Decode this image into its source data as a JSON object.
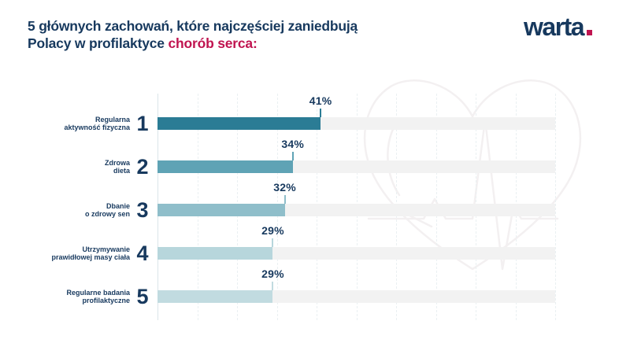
{
  "header": {
    "title_line1": "5 głównych zachowań, które najczęściej zaniedbują",
    "title_line2_prefix": "Polacy w profilaktyce ",
    "title_line2_highlight": "chorób serca:",
    "logo_text": "warta"
  },
  "colors": {
    "navy": "#17395e",
    "red": "#c01450",
    "track": "#f2f2f2",
    "axis": "#dbe5e9",
    "grid": "#eaf0f2",
    "watermark": "#f3f0f1"
  },
  "chart_data": {
    "type": "bar",
    "orientation": "horizontal",
    "title": "5 głównych zachowań, które najczęściej zaniedbują Polacy w profilaktyce chorób serca:",
    "categories": [
      "Regularna aktywność fizyczna",
      "Zdrowa dieta",
      "Dbanie o zdrowy sen",
      "Utrzymywanie prawidłowej masy ciała",
      "Regularne badania profilaktyczne"
    ],
    "category_label_lines": [
      [
        "Regularna",
        "aktywność fizyczna"
      ],
      [
        "Zdrowa",
        "dieta"
      ],
      [
        "Dbanie",
        "o zdrowy sen"
      ],
      [
        "Utrzymywanie",
        "prawidłowej masy ciała"
      ],
      [
        "Regularne badania",
        "profilaktyczne"
      ]
    ],
    "ranks": [
      "1",
      "2",
      "3",
      "4",
      "5"
    ],
    "values": [
      41,
      34,
      32,
      29,
      29
    ],
    "value_labels": [
      "41%",
      "34%",
      "32%",
      "29%",
      "29%"
    ],
    "bar_colors": [
      "#2b7c95",
      "#5fa3b5",
      "#8fbeca",
      "#b7d6dc",
      "#c1dbe0"
    ],
    "xlim": [
      0,
      100
    ],
    "grid": true,
    "grid_interval_pct": 10,
    "legend": false
  }
}
